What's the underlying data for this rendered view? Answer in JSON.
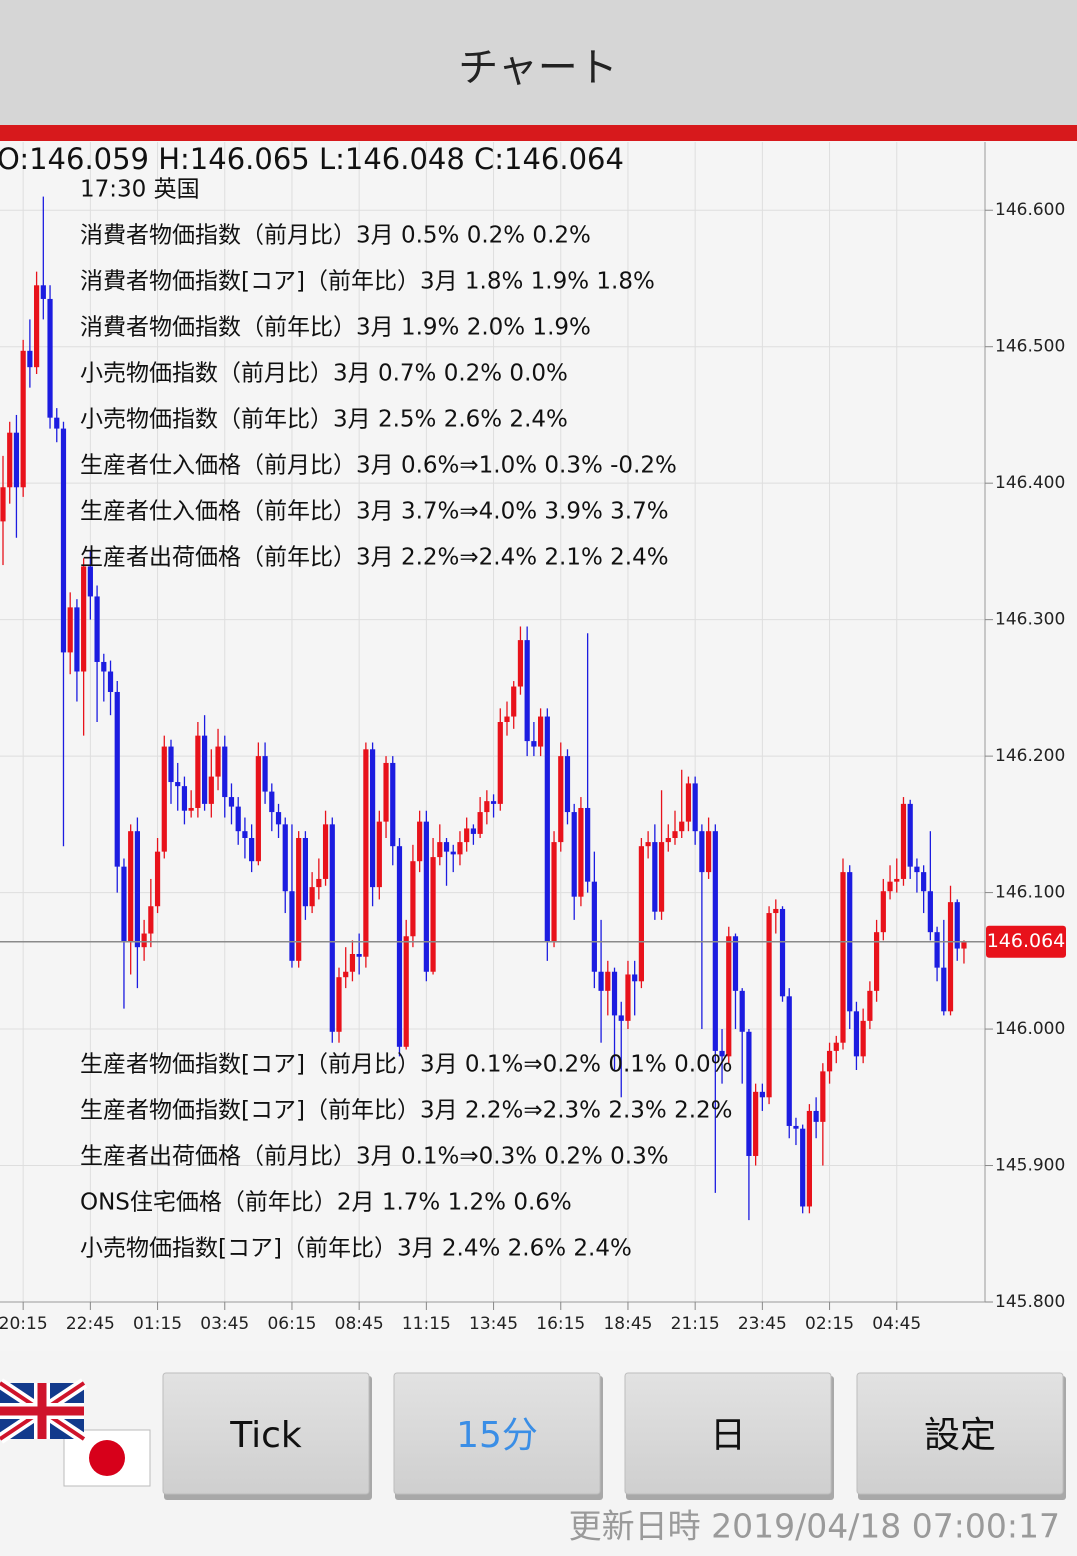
{
  "header": {
    "title": "チャート"
  },
  "chart_data": {
    "type": "candlestick",
    "ohlc_text": "O:146.059 H:146.065 L:146.048 C:146.064",
    "up_color": "#e8121b",
    "down_color": "#1c1ce0",
    "ylim": [
      145.8,
      146.65
    ],
    "yticks": [
      {
        "value": 145.8,
        "label": "145.800"
      },
      {
        "value": 145.9,
        "label": "145.900"
      },
      {
        "value": 146.0,
        "label": "146.000"
      },
      {
        "value": 146.1,
        "label": "146.100"
      },
      {
        "value": 146.2,
        "label": "146.200"
      },
      {
        "value": 146.3,
        "label": "146.300"
      },
      {
        "value": 146.4,
        "label": "146.400"
      },
      {
        "value": 146.5,
        "label": "146.500"
      },
      {
        "value": 146.6,
        "label": "146.600"
      }
    ],
    "grid": true,
    "current_price": 146.064,
    "categories": [
      null,
      null,
      null,
      "20:15",
      null,
      null,
      null,
      null,
      null,
      null,
      null,
      null,
      null,
      "22:45",
      null,
      null,
      null,
      null,
      null,
      null,
      null,
      null,
      null,
      "01:15",
      null,
      null,
      null,
      null,
      null,
      null,
      null,
      null,
      null,
      "03:45",
      null,
      null,
      null,
      null,
      null,
      null,
      null,
      null,
      null,
      "06:15",
      null,
      null,
      null,
      null,
      null,
      null,
      null,
      null,
      null,
      "08:45",
      null,
      null,
      null,
      null,
      null,
      null,
      null,
      null,
      null,
      "11:15",
      null,
      null,
      null,
      null,
      null,
      null,
      null,
      null,
      null,
      "13:45",
      null,
      null,
      null,
      null,
      null,
      null,
      null,
      null,
      null,
      "16:15",
      null,
      null,
      null,
      null,
      null,
      null,
      null,
      null,
      null,
      "18:45",
      null,
      null,
      null,
      null,
      null,
      null,
      null,
      null,
      null,
      "21:15",
      null,
      null,
      null,
      null,
      null,
      null,
      null,
      null,
      null,
      "23:45",
      null,
      null,
      null,
      null,
      null,
      null,
      null,
      null,
      null,
      "02:15",
      null,
      null,
      null,
      null,
      null,
      null,
      null,
      null,
      null,
      "04:45",
      null,
      null,
      null,
      null,
      null,
      null,
      null,
      null,
      null,
      null
    ],
    "candles": [
      [
        146.372,
        146.42,
        146.34,
        146.397
      ],
      [
        146.397,
        146.445,
        146.385,
        146.437
      ],
      [
        146.437,
        146.45,
        146.36,
        146.397
      ],
      [
        146.397,
        146.505,
        146.39,
        146.497
      ],
      [
        146.497,
        146.52,
        146.47,
        146.485
      ],
      [
        146.485,
        146.555,
        146.48,
        146.545
      ],
      [
        146.545,
        146.61,
        146.52,
        146.535
      ],
      [
        146.535,
        146.545,
        146.44,
        146.448
      ],
      [
        146.448,
        146.455,
        146.43,
        146.44
      ],
      [
        146.44,
        146.445,
        146.134,
        146.276
      ],
      [
        146.276,
        146.32,
        146.26,
        146.309
      ],
      [
        146.309,
        146.315,
        146.24,
        146.262
      ],
      [
        146.262,
        146.345,
        146.215,
        146.339
      ],
      [
        146.339,
        146.35,
        146.3,
        146.317
      ],
      [
        146.317,
        146.325,
        146.225,
        146.269
      ],
      [
        146.269,
        146.275,
        146.24,
        146.262
      ],
      [
        146.262,
        146.27,
        146.23,
        146.247
      ],
      [
        146.247,
        146.255,
        146.1,
        146.119
      ],
      [
        146.119,
        146.125,
        146.015,
        146.064
      ],
      [
        146.064,
        146.15,
        146.04,
        146.145
      ],
      [
        146.145,
        146.155,
        146.03,
        146.06
      ],
      [
        146.06,
        146.08,
        146.05,
        146.07
      ],
      [
        146.07,
        146.11,
        146.06,
        146.09
      ],
      [
        146.09,
        146.14,
        146.085,
        146.13
      ],
      [
        146.13,
        146.215,
        146.125,
        146.207
      ],
      [
        146.207,
        146.212,
        146.165,
        146.181
      ],
      [
        146.181,
        146.195,
        146.16,
        146.178
      ],
      [
        146.178,
        146.185,
        146.15,
        146.16
      ],
      [
        146.16,
        146.175,
        146.155,
        146.162
      ],
      [
        146.162,
        146.225,
        146.155,
        146.215
      ],
      [
        146.215,
        146.23,
        146.16,
        146.165
      ],
      [
        146.165,
        146.205,
        146.155,
        146.185
      ],
      [
        146.185,
        146.22,
        146.175,
        146.207
      ],
      [
        146.207,
        146.215,
        146.155,
        146.17
      ],
      [
        146.17,
        146.18,
        146.15,
        146.163
      ],
      [
        146.163,
        146.17,
        146.135,
        146.145
      ],
      [
        146.145,
        146.155,
        146.125,
        146.14
      ],
      [
        146.14,
        146.15,
        146.115,
        146.123
      ],
      [
        146.123,
        146.21,
        146.12,
        146.2
      ],
      [
        146.2,
        146.21,
        146.165,
        146.174
      ],
      [
        146.174,
        146.18,
        146.145,
        146.159
      ],
      [
        146.159,
        146.165,
        146.14,
        146.15
      ],
      [
        146.15,
        146.155,
        146.085,
        146.101
      ],
      [
        146.101,
        146.15,
        146.045,
        146.05
      ],
      [
        146.05,
        146.145,
        146.045,
        146.14
      ],
      [
        146.14,
        146.145,
        146.08,
        146.09
      ],
      [
        146.09,
        146.115,
        146.085,
        146.104
      ],
      [
        146.104,
        146.125,
        146.095,
        146.11
      ],
      [
        146.11,
        146.16,
        146.105,
        146.15
      ],
      [
        146.15,
        146.155,
        145.99,
        145.998
      ],
      [
        145.998,
        146.045,
        145.99,
        146.038
      ],
      [
        146.038,
        146.06,
        146.03,
        146.042
      ],
      [
        146.042,
        146.065,
        146.035,
        146.055
      ],
      [
        146.055,
        146.07,
        146.04,
        146.053
      ],
      [
        146.053,
        146.21,
        146.045,
        146.205
      ],
      [
        146.205,
        146.21,
        146.09,
        146.104
      ],
      [
        146.104,
        146.16,
        146.095,
        146.152
      ],
      [
        146.152,
        146.2,
        146.14,
        146.195
      ],
      [
        146.195,
        146.2,
        146.12,
        146.134
      ],
      [
        146.134,
        146.14,
        145.98,
        145.987
      ],
      [
        145.987,
        146.08,
        145.985,
        146.068
      ],
      [
        146.068,
        146.135,
        146.06,
        146.123
      ],
      [
        146.123,
        146.16,
        146.115,
        146.152
      ],
      [
        146.152,
        146.16,
        146.035,
        146.042
      ],
      [
        146.042,
        146.14,
        146.04,
        146.126
      ],
      [
        146.126,
        146.15,
        146.12,
        146.137
      ],
      [
        146.137,
        146.14,
        146.105,
        146.13
      ],
      [
        146.13,
        146.135,
        146.115,
        146.128
      ],
      [
        146.128,
        146.145,
        146.12,
        146.137
      ],
      [
        146.137,
        146.155,
        146.13,
        146.147
      ],
      [
        146.147,
        146.15,
        146.135,
        146.143
      ],
      [
        146.143,
        146.17,
        146.14,
        146.159
      ],
      [
        146.159,
        146.175,
        146.15,
        146.167
      ],
      [
        146.167,
        146.172,
        146.155,
        146.165
      ],
      [
        146.165,
        146.235,
        146.16,
        146.225
      ],
      [
        146.225,
        146.24,
        146.215,
        146.229
      ],
      [
        146.229,
        146.255,
        146.22,
        146.251
      ],
      [
        146.251,
        146.295,
        146.245,
        146.285
      ],
      [
        146.285,
        146.295,
        146.2,
        146.211
      ],
      [
        146.211,
        146.225,
        146.2,
        146.207
      ],
      [
        146.207,
        146.235,
        146.2,
        146.229
      ],
      [
        146.229,
        146.235,
        146.05,
        146.064
      ],
      [
        146.064,
        146.145,
        146.06,
        146.137
      ],
      [
        146.137,
        146.21,
        146.13,
        146.2
      ],
      [
        146.2,
        146.205,
        146.15,
        146.159
      ],
      [
        146.159,
        146.165,
        146.08,
        146.097
      ],
      [
        146.097,
        146.17,
        146.09,
        146.162
      ],
      [
        146.162,
        146.29,
        146.1,
        146.108
      ],
      [
        146.108,
        146.13,
        146.03,
        146.042
      ],
      [
        146.042,
        146.08,
        145.99,
        146.028
      ],
      [
        146.028,
        146.05,
        146.01,
        146.042
      ],
      [
        146.042,
        146.045,
        145.97,
        146.01
      ],
      [
        146.01,
        146.02,
        145.95,
        146.006
      ],
      [
        146.006,
        146.05,
        146.0,
        146.04
      ],
      [
        146.04,
        146.05,
        146.01,
        146.035
      ],
      [
        146.035,
        146.14,
        146.03,
        146.134
      ],
      [
        146.134,
        146.145,
        146.125,
        146.137
      ],
      [
        146.137,
        146.15,
        146.08,
        146.086
      ],
      [
        146.086,
        146.175,
        146.08,
        146.137
      ],
      [
        146.137,
        146.15,
        146.13,
        146.14
      ],
      [
        146.14,
        146.16,
        146.135,
        146.145
      ],
      [
        146.145,
        146.19,
        146.14,
        146.152
      ],
      [
        146.152,
        146.185,
        146.145,
        146.18
      ],
      [
        146.18,
        146.185,
        146.135,
        146.145
      ],
      [
        146.145,
        146.15,
        146.0,
        146.115
      ],
      [
        146.115,
        146.155,
        146.11,
        146.145
      ],
      [
        146.145,
        146.15,
        145.88,
        145.984
      ],
      [
        145.984,
        146.0,
        145.96,
        145.98
      ],
      [
        145.98,
        146.075,
        145.975,
        146.068
      ],
      [
        146.068,
        146.07,
        146.0,
        146.028
      ],
      [
        146.028,
        146.03,
        145.96,
        145.998
      ],
      [
        145.998,
        146.0,
        145.86,
        145.907
      ],
      [
        145.907,
        145.96,
        145.9,
        145.954
      ],
      [
        145.954,
        145.96,
        145.94,
        145.95
      ],
      [
        145.95,
        146.09,
        145.945,
        146.085
      ],
      [
        146.085,
        146.095,
        146.07,
        146.088
      ],
      [
        146.088,
        146.09,
        146.02,
        146.024
      ],
      [
        146.024,
        146.03,
        145.92,
        145.929
      ],
      [
        145.929,
        145.935,
        145.915,
        145.927
      ],
      [
        145.927,
        145.93,
        145.865,
        145.87
      ],
      [
        145.87,
        145.945,
        145.865,
        145.94
      ],
      [
        145.94,
        145.95,
        145.92,
        145.932
      ],
      [
        145.932,
        145.975,
        145.9,
        145.969
      ],
      [
        145.969,
        145.99,
        145.96,
        145.984
      ],
      [
        145.984,
        145.995,
        145.975,
        145.99
      ],
      [
        145.99,
        146.125,
        145.985,
        146.115
      ],
      [
        146.115,
        146.12,
        146.0,
        146.013
      ],
      [
        146.013,
        146.02,
        145.97,
        145.98
      ],
      [
        145.98,
        146.015,
        145.975,
        146.006
      ],
      [
        146.006,
        146.035,
        146.0,
        146.028
      ],
      [
        146.028,
        146.08,
        146.02,
        146.071
      ],
      [
        146.071,
        146.11,
        146.065,
        146.101
      ],
      [
        146.101,
        146.12,
        146.095,
        146.108
      ],
      [
        146.108,
        146.125,
        146.1,
        146.11
      ],
      [
        146.11,
        146.17,
        146.105,
        146.165
      ],
      [
        146.165,
        146.168,
        146.11,
        146.119
      ],
      [
        146.119,
        146.125,
        146.1,
        146.115
      ],
      [
        146.115,
        146.12,
        146.085,
        146.101
      ],
      [
        146.101,
        146.145,
        146.065,
        146.071
      ],
      [
        146.071,
        146.075,
        146.035,
        146.045
      ],
      [
        146.045,
        146.08,
        146.01,
        146.013
      ],
      [
        146.013,
        146.105,
        146.01,
        146.093
      ],
      [
        146.093,
        146.095,
        146.05,
        146.059
      ],
      [
        146.059,
        146.065,
        146.048,
        146.064
      ]
    ],
    "annotations": {
      "top": [
        "17:30 英国",
        "消費者物価指数（前月比）3月 0.5% 0.2% 0.2%",
        "消費者物価指数[コア]（前年比）3月 1.8% 1.9% 1.8%",
        "消費者物価指数（前年比）3月 1.9% 2.0% 1.9%",
        "小売物価指数（前月比）3月 0.7% 0.2% 0.0%",
        "小売物価指数（前年比）3月 2.5% 2.6% 2.4%",
        "生産者仕入価格（前月比）3月 0.6%⇒1.0% 0.3% -0.2%",
        "生産者仕入価格（前年比）3月 3.7%⇒4.0% 3.9% 3.7%",
        "生産者出荷価格（前年比）3月 2.2%⇒2.4% 2.1% 2.4%"
      ],
      "bottom": [
        "生産者物価指数[コア]（前月比）3月 0.1%⇒0.2% 0.1% 0.0%",
        "生産者物価指数[コア]（前年比）3月 2.2%⇒2.3% 2.3% 2.2%",
        "生産者出荷価格（前月比）3月 0.1%⇒0.3% 0.2% 0.3%",
        "ONS住宅価格（前年比）2月 1.7% 1.2% 0.6%",
        "小売物価指数[コア]（前年比）3月 2.4% 2.6% 2.4%"
      ]
    }
  },
  "buttons": [
    "Tick",
    "15分",
    "日",
    "設定"
  ],
  "selected_button": 1,
  "footer": {
    "updated": "更新日時 2019/04/18 07:00:17"
  }
}
